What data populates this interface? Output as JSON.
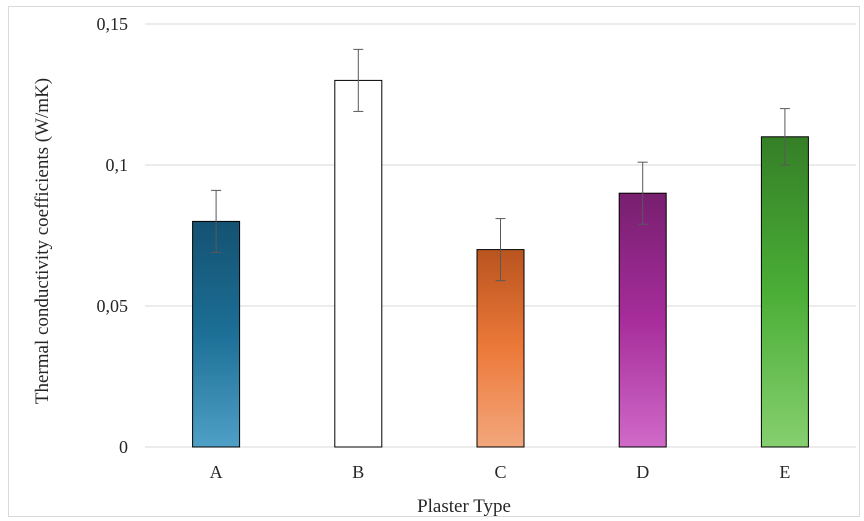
{
  "chart_data": {
    "type": "bar",
    "categories": [
      "A",
      "B",
      "C",
      "D",
      "E"
    ],
    "values": [
      0.08,
      0.13,
      0.07,
      0.09,
      0.11
    ],
    "errors": [
      0.011,
      0.011,
      0.011,
      0.011,
      0.01
    ],
    "bar_colors": [
      {
        "top": "#145272",
        "mid": "#1c6f96",
        "bottom": "#4fa0c6"
      },
      {
        "top": "#ffffff",
        "mid": "#ffffff",
        "bottom": "#ffffff"
      },
      {
        "top": "#b9541f",
        "mid": "#ec7939",
        "bottom": "#f3a77d"
      },
      {
        "top": "#771f6f",
        "mid": "#a62d9b",
        "bottom": "#d06ac8"
      },
      {
        "top": "#357f27",
        "mid": "#4aae36",
        "bottom": "#86cf6f"
      }
    ],
    "ylabel": "Thermal conductivity coefficients (W/mK)",
    "xlabel": "Plaster Type",
    "ylim": [
      0,
      0.15
    ],
    "yticks": [
      0,
      0.05,
      0.1,
      0.15
    ],
    "ytick_labels": [
      "0",
      "0,05",
      "0,1",
      "0,15"
    ],
    "grid": true,
    "gridline_color": "#d9d9d9"
  }
}
